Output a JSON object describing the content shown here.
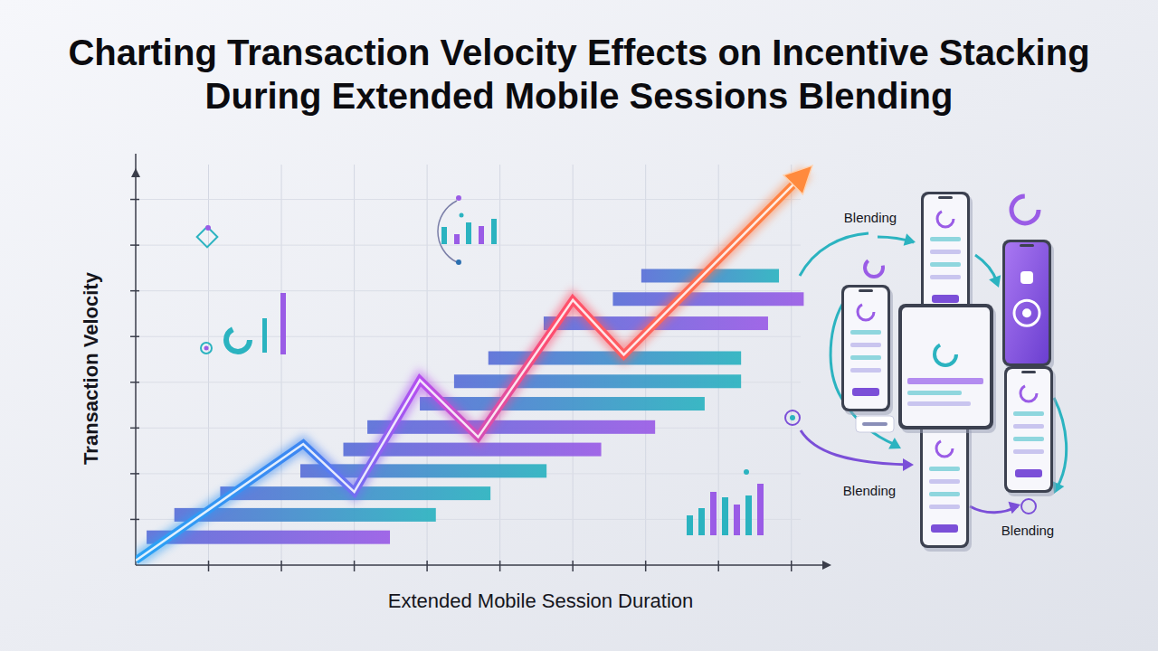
{
  "chart_data": {
    "type": "line",
    "title": "Charting Transaction Velocity Effects on Incentive Stacking During Extended Mobile Sessions Blending",
    "x_label": "Extended Mobile Session Duration",
    "y_label": "Transaction Velocity",
    "xlim": [
      0,
      9.5
    ],
    "ylim": [
      0,
      9
    ],
    "xticks": [
      1,
      2,
      3,
      4,
      5,
      6,
      7,
      8,
      9
    ],
    "yticks": [
      1,
      2,
      3,
      4,
      5,
      6,
      7,
      8
    ],
    "tick_labels": false,
    "grid": true,
    "x": [
      0,
      2.3,
      3.0,
      3.9,
      4.7,
      6.0,
      6.7,
      9.2
    ],
    "series": [
      {
        "name": "Transaction Velocity",
        "color": "#ff8a3d",
        "marker": "arrow",
        "values": [
          0.1,
          2.65,
          1.6,
          4.05,
          2.8,
          5.8,
          4.6,
          8.6
        ]
      }
    ],
    "bars": {
      "type": "range",
      "orientation": "horizontal",
      "y": [
        0.61,
        1.1,
        1.57,
        2.06,
        2.53,
        3.02,
        3.53,
        4.02,
        4.53,
        5.29,
        5.82,
        6.33
      ],
      "start": [
        0.15,
        0.53,
        1.16,
        2.26,
        2.85,
        3.18,
        3.9,
        4.37,
        4.84,
        5.6,
        6.55,
        6.94
      ],
      "end": [
        3.49,
        4.12,
        4.87,
        5.64,
        6.39,
        7.13,
        7.81,
        8.31,
        8.31,
        8.68,
        9.17,
        8.83
      ],
      "colors": [
        "#9a5ce6",
        "#2bb3c0",
        "#2bb3c0",
        "#2bb3c0",
        "#9a5ce6",
        "#9a5ce6",
        "#2bb3c0",
        "#2bb3c0",
        "#2bb3c0",
        "#9a5ce6",
        "#9a5ce6",
        "#2bb3c0"
      ]
    }
  },
  "diagram": {
    "labels": [
      "Blending",
      "Blending",
      "Blending"
    ]
  }
}
